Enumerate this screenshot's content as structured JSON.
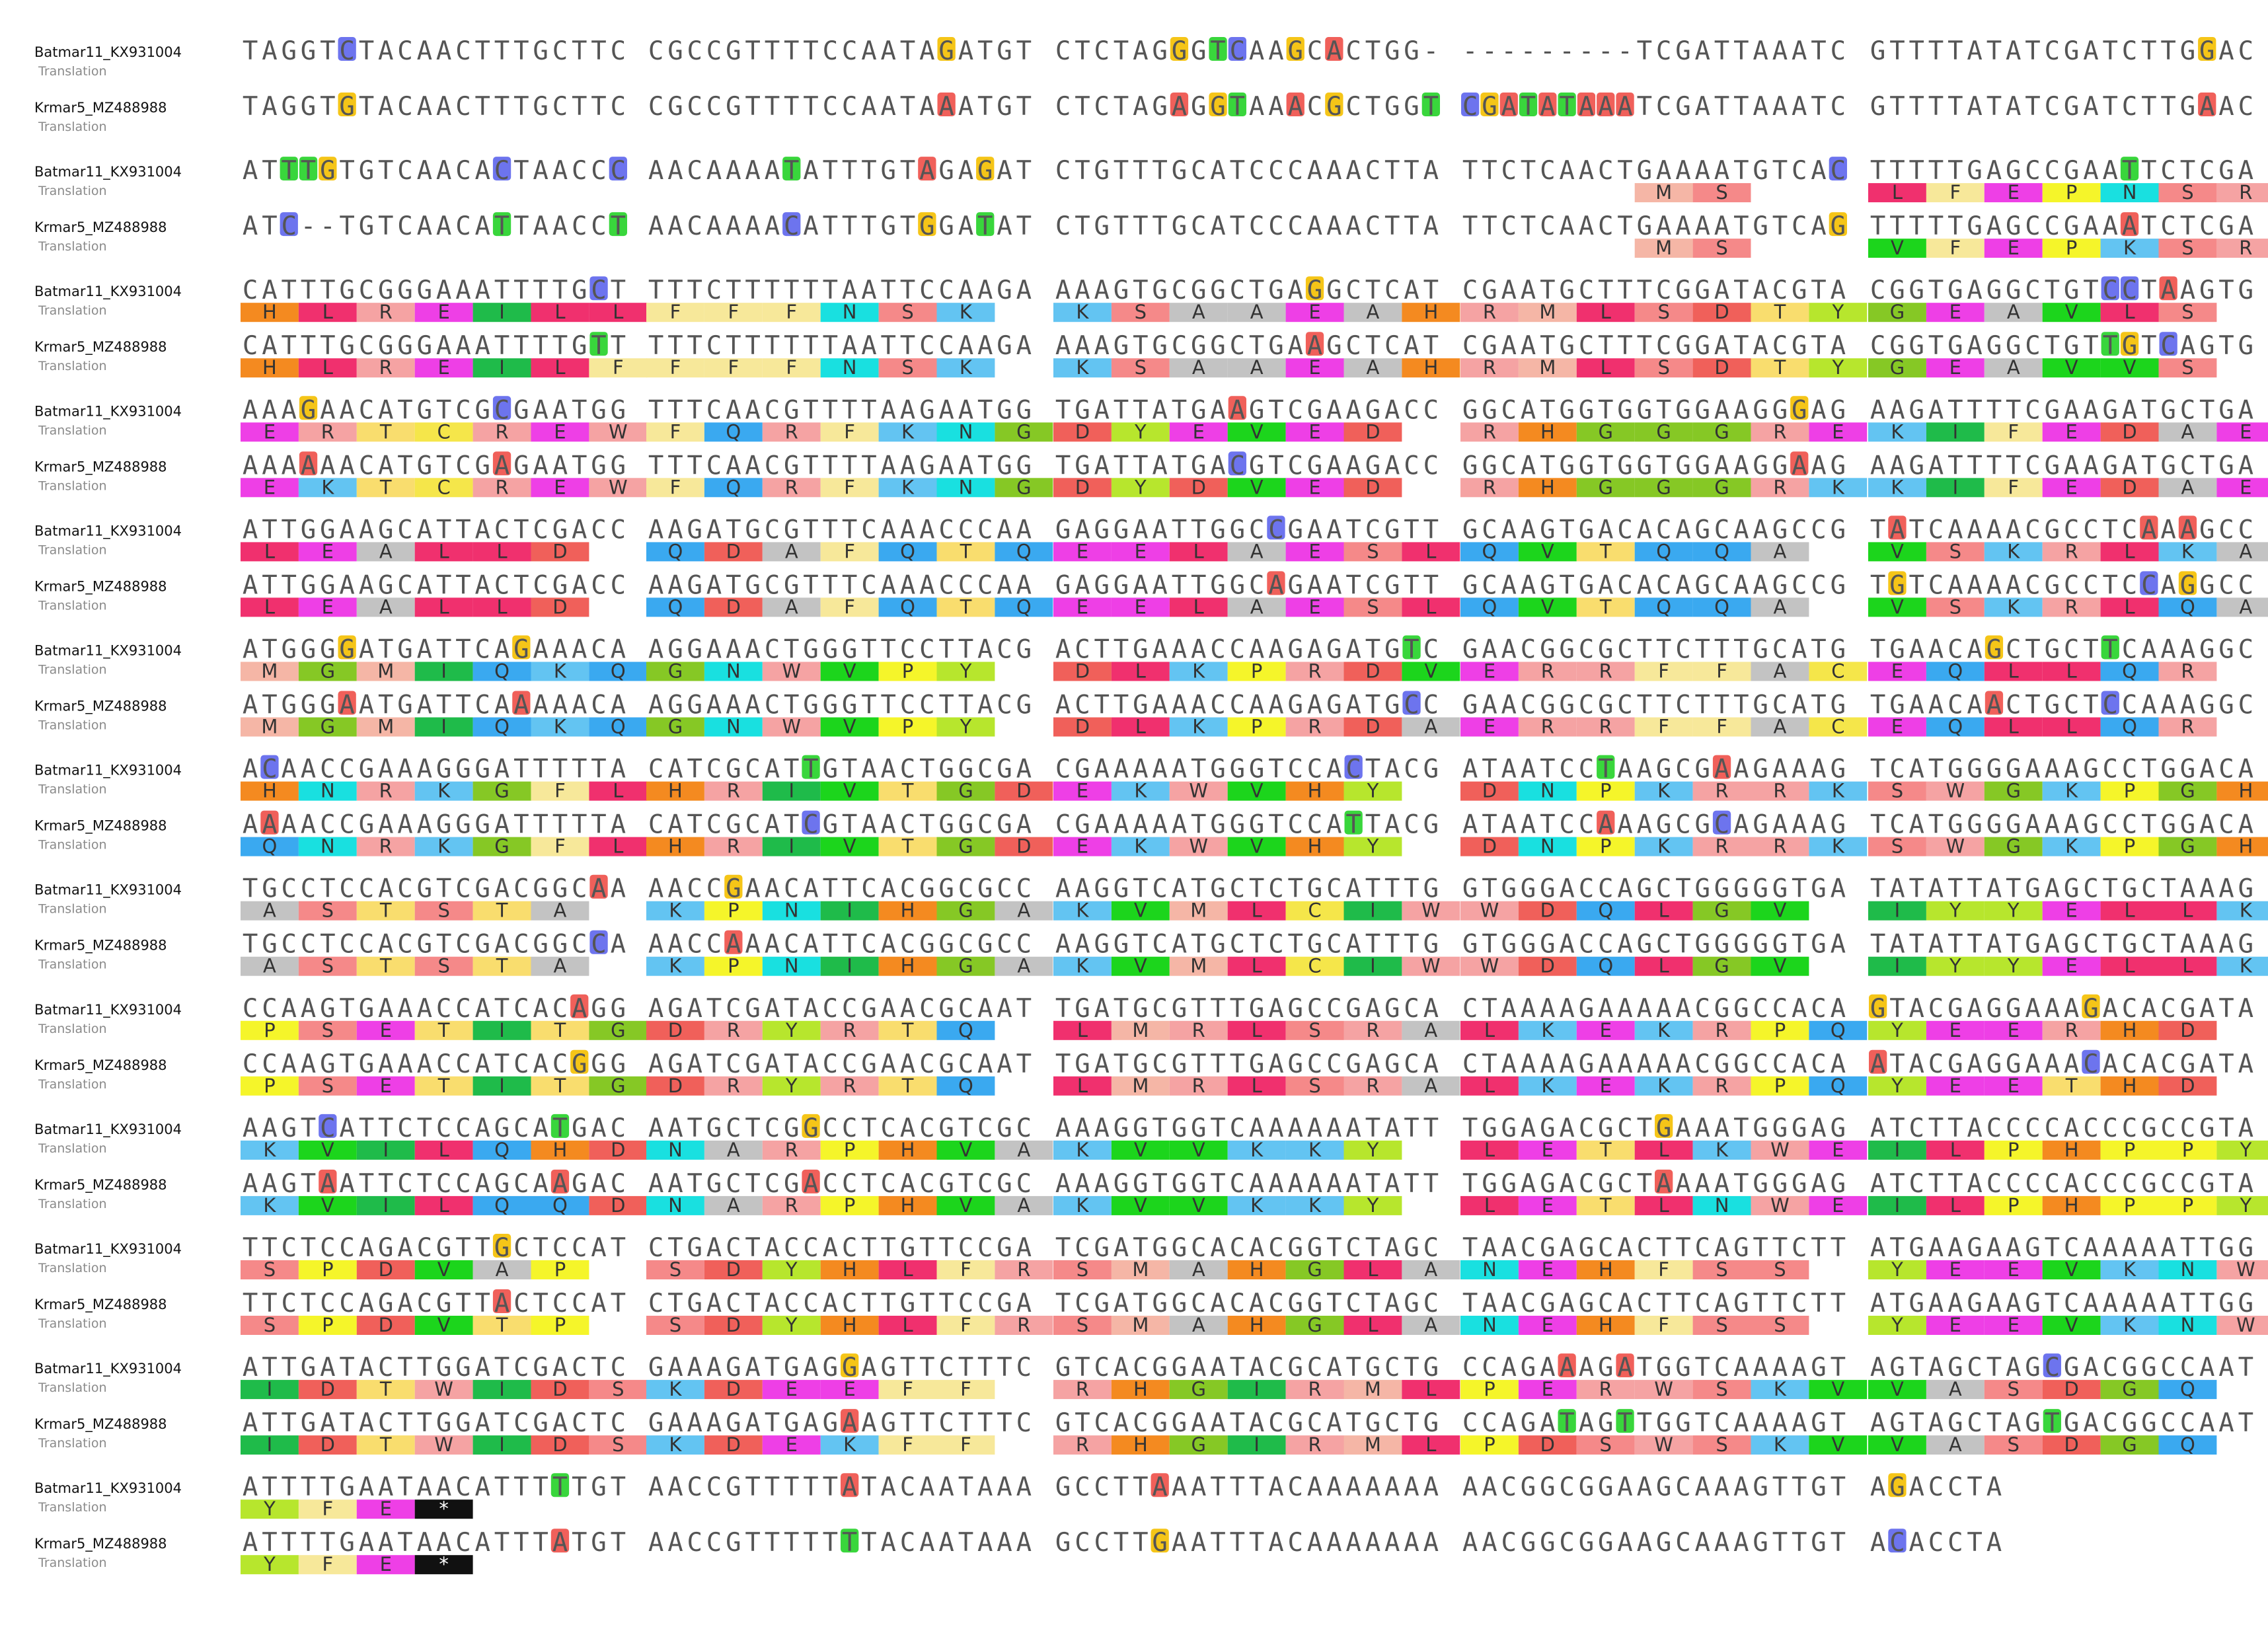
{
  "sequence_labels": {
    "batmar11": "Batmar11_KX931004",
    "krmar5": "Krmar5_MZ488988",
    "translation": "Translation"
  },
  "alignment_blocks": [
    {
      "top": {
        "nt": [
          "TAGGTCTACAACTTTGCTTC",
          "CGCCGTTTTCCAATAGATGT",
          "CTCTAGGGTCAAGCACTGG-",
          "---------TCGATTAAATC",
          "GTTTTATATCGATCTTGGAC"
        ],
        "aa": [
          "",
          "",
          "",
          "",
          ""
        ]
      },
      "bottom": {
        "nt": [
          "TAGGTGTACAACTTTGCTTC",
          "CGCCGTTTTCCAATAAATGT",
          "CTCTAGAGGTAAACGCTGGT",
          "CGATATAAATCGATTAAATC",
          "GTTTTATATCGATCTTGAAC"
        ],
        "aa": [
          "",
          "",
          "",
          "",
          ""
        ]
      }
    },
    {
      "top": {
        "nt": [
          "ATTTGTGTCAACACTAACCC",
          "AACAAAATATTTGTAGAGAT",
          "CTGTTTGCATCCCAAACTTA",
          "TTCTCAACTGAAAATGTCAC",
          "TTTTTGAGCCGAATTCTCGA"
        ],
        "aa": [
          "",
          "",
          "",
          "          M  S  ",
          "L  F  E  P  N  S  R "
        ]
      },
      "bottom": {
        "nt": [
          "ATC--TGTCAACATTAACCT",
          "AACAAAACATTTGTGGATAT",
          "CTGTTTGCATCCCAAACTTA",
          "TTCTCAACTGAAAATGTCAG",
          "TTTTTGAGCCGAAATCTCGA"
        ],
        "aa": [
          "",
          "",
          "",
          "          M  S  ",
          "V  F  E  P  K  S  R "
        ]
      }
    },
    {
      "top": {
        "nt": [
          "CATTTGCGGGAAATTTTGCT",
          "TTTCTTTTTTAATTCCAAGA",
          "AAAGTGCGGCTGAGGCTCAT",
          "CGAATGCTTTCGGATACGTA",
          "CGGTGAGGCTGTCCTAAGTG"
        ],
        "aa": [
          "H  L  R  E  I  L  L ",
          "  F  F  F  N  S  K  ",
          " K  S  A  A  E  A  H",
          "R  M  L  S  D  T  Y ",
          "  G  E  A  V  L  S  "
        ]
      },
      "bottom": {
        "nt": [
          "CATTTGCGGGAAATTTTGTT",
          "TTTCTTTTTTAATTCCAAGA",
          "AAAGTGCGGCTGAAGCTCAT",
          "CGAATGCTTTCGGATACGTA",
          "CGGTGAGGCTGTTGTCAGTG"
        ],
        "aa": [
          "H  L  R  E  I  L  F ",
          "  F  F  F  N  S  K  ",
          " K  S  A  A  E  A  H",
          "R  M  L  S  D  T  Y ",
          "  G  E  A  V  V  S  "
        ]
      }
    },
    {
      "top": {
        "nt": [
          "AAAGAACATGTCGCGAATGG",
          "TTTCAACGTTTTAAGAATGG",
          "TGATTATGAAGTCGAAGACC",
          "GGCATGGTGGTGGAAGGGAG",
          "AAGATTTTCGAAGATGCTGA"
        ],
        "aa": [
          "E  R  T  C  R  E  W ",
          "  F  Q  R  F  K  N  G",
          " D  Y  E  V  E  D  ",
          "R  H  G  G  G  R  E ",
          "  K  I  F  E  D  A  E"
        ]
      },
      "bottom": {
        "nt": [
          "AAAAAACATGTCGAGAATGG",
          "TTTCAACGTTTTAAGAATGG",
          "TGATTATGACGTCGAAGACC",
          "GGCATGGTGGTGGAAGGAAG",
          "AAGATTTTCGAAGATGCTGA"
        ],
        "aa": [
          "E  K  T  C  R  E  W ",
          "  F  Q  R  F  K  N  G",
          " D  Y  D  V  E  D  ",
          "R  H  G  G  G  R  K ",
          "  K  I  F  E  D  A  E"
        ]
      }
    },
    {
      "top": {
        "nt": [
          "ATTGGAAGCATTACTCGACC",
          "AAGATGCGTTTCAAACCCAA",
          "GAGGAATTGGCCGAATCGTT",
          "GCAAGTGACACAGCAAGCCG",
          "TATCAAAACGCCTCAAAGCC"
        ],
        "aa": [
          "  L  E  A  L  L  D  ",
          "Q  D  A  F  Q  T  Q ",
          "  E  E  L  A  E  S  L",
          "  Q  V  T  Q  Q  A  ",
          "V  S  K  R  L  K  A "
        ]
      },
      "bottom": {
        "nt": [
          "ATTGGAAGCATTACTCGACC",
          "AAGATGCGTTTCAAACCCAA",
          "GAGGAATTGGCAGAATCGTT",
          "GCAAGTGACACAGCAAGCCG",
          "TGTCAAAACGCCTCCAGGCC"
        ],
        "aa": [
          "  L  E  A  L  L  D  ",
          "Q  D  A  F  Q  T  Q ",
          "  E  E  L  A  E  S  L",
          "  Q  V  T  Q  Q  A  ",
          "V  S  K  R  L  Q  A "
        ]
      }
    },
    {
      "top": {
        "nt": [
          "ATGGGGATGATTCAGAAACA",
          "AGGAAACTGGGTTCCTTACG",
          "ACTTGAAACCAAGAGATGTC",
          "GAACGGCGCTTCTTTGCATG",
          "TGAACAGCTGCTTCAAAGGC"
        ],
        "aa": [
          "M  G  M  I  Q  K  Q ",
          "  G  N  W  V  P  Y  ",
          "D  L  K  P  R  D  V ",
          "  E  R  R  F  F  A  C",
          "  E  Q  L  L  Q  R  "
        ]
      },
      "bottom": {
        "nt": [
          "ATGGGAATGATTCAAAAACA",
          "AGGAAACTGGGTTCCTTACG",
          "ACTTGAAACCAAGAGATGCC",
          "GAACGGCGCTTCTTTGCATG",
          "TGAACAACTGCTCCAAAGGC"
        ],
        "aa": [
          "M  G  M  I  Q  K  Q ",
          "  G  N  W  V  P  Y  ",
          "D  L  K  P  R  D  A ",
          "  E  R  R  F  F  A  C",
          "  E  Q  L  L  Q  R  "
        ]
      }
    },
    {
      "top": {
        "nt": [
          "ACAACCGAAAGGGATTTTTA",
          "CATCGCATTGTAACTGGCGA",
          "CGAAAAATGGGTCCACTACG",
          "ATAATCCTAAGCGAAGAAAG",
          "TCATGGGGAAAGCCTGGACA"
        ],
        "aa": [
          "H  N  R  K  G  F  L ",
          "H  R  I  V  T  G  D ",
          "  E  K  W  V  H  Y  ",
          "D  N  P  K  R  R  K ",
          "  S  W  G  K  P  G  H"
        ]
      },
      "bottom": {
        "nt": [
          "AAAACCGAAAGGGATTTTTA",
          "CATCGCATCGTAACTGGCGA",
          "CGAAAAATGGGTCCATTACG",
          "ATAATCCAAAGCGCAGAAAG",
          "TCATGGGGAAAGCCTGGACA"
        ],
        "aa": [
          "Q  N  R  K  G  F  L ",
          "H  R  I  V  T  G  D ",
          "  E  K  W  V  H  Y  ",
          "D  N  P  K  R  R  K ",
          "  S  W  G  K  P  G  H"
        ]
      }
    },
    {
      "top": {
        "nt": [
          "TGCCTCCACGTCGACGGCAA",
          "AACCGAACATTCACGGCGCC",
          "AAGGTCATGCTCTGCATTTG",
          "GTGGGACCAGCTGGGGGTGA",
          "TATATTATGAGCTGCTAAAG"
        ],
        "aa": [
          "  A  S  T  S  T  A  ",
          "K  P  N  I  H  G  A ",
          "  K  V  M  L  C  I  W",
          "  W  D  Q  L  G  V  ",
          "I  Y  Y  E  L  L  K "
        ]
      },
      "bottom": {
        "nt": [
          "TGCCTCCACGTCGACGGCCA",
          "AACCAAACATTCACGGCGCC",
          "AAGGTCATGCTCTGCATTTG",
          "GTGGGACCAGCTGGGGGTGA",
          "TATATTATGAGCTGCTAAAG"
        ],
        "aa": [
          "  A  S  T  S  T  A  ",
          "K  P  N  I  H  G  A ",
          "  K  V  M  L  C  I  W",
          "  W  D  Q  L  G  V  ",
          "I  Y  Y  E  L  L  K "
        ]
      }
    },
    {
      "top": {
        "nt": [
          "CCAAGTGAAACCATCACAGG",
          "AGATCGATACCGAACGCAAT",
          "TGATGCGTTTGAGCCGAGCA",
          "CTAAAAGAAAAACGGCCACA",
          "GTACGAGGAAAGACACGATA"
        ],
        "aa": [
          "P  S  E  T  I  T  G ",
          "  D  R  Y  R  T  Q  ",
          "L  M  R  L  S  R  A ",
          "  L  K  E  K  R  P  Q",
          "  Y  E  E  R  H  D  "
        ]
      },
      "bottom": {
        "nt": [
          "CCAAGTGAAACCATCACGGG",
          "AGATCGATACCGAACGCAAT",
          "TGATGCGTTTGAGCCGAGCA",
          "CTAAAAGAAAAACGGCCACA",
          "ATACGAGGAAACACACGATA"
        ],
        "aa": [
          "P  S  E  T  I  T  G ",
          "  D  R  Y  R  T  Q  ",
          "L  M  R  L  S  R  A ",
          "  L  K  E  K  R  P  Q",
          "  Y  E  E  T  H  D  "
        ]
      }
    },
    {
      "top": {
        "nt": [
          "AAGTCATTCTCCAGCATGAC",
          "AATGCTCGGCCTCACGTCGC",
          "AAAGGTGGTCAAAAAATATT",
          "TGGAGACGCTGAAATGGGAG",
          "ATCTTACCCCACCCGCCGTA"
        ],
        "aa": [
          "K  V  I  L  Q  H  D ",
          "  N  A  R  P  H  V  A",
          "  K  V  V  K  K  Y  ",
          "L  E  T  L  K  W  E ",
          "  I  L  P  H  P  P  Y"
        ]
      },
      "bottom": {
        "nt": [
          "AAGTAATTCTCCAGCAAGAC",
          "AATGCTCGACCTCACGTCGC",
          "AAAGGTGGTCAAAAAATATT",
          "TGGAGACGCTAAAATGGGAG",
          "ATCTTACCCCACCCGCCGTA"
        ],
        "aa": [
          "K  V  I  L  Q  Q  D ",
          "  N  A  R  P  H  V  A",
          "  K  V  V  K  K  Y  ",
          "L  E  T  L  N  W  E ",
          "  I  L  P  H  P  P  Y"
        ]
      }
    },
    {
      "top": {
        "nt": [
          "TTCTCCAGACGTTGCTCCAT",
          "CTGACTACCACTTGTTCCGA",
          "TCGATGGCACACGGTCTAGC",
          "TAACGAGCACTTCAGTTCTT",
          "ATGAAGAAGTCAAAAATTGG"
        ],
        "aa": [
          "  S  P  D  V  A  P  ",
          "S  D  Y  H  L  F  R ",
          "  S  M  A  H  G  L  A",
          "  N  E  H  F  S  S  ",
          "Y  E  E  V  K  N  W "
        ]
      },
      "bottom": {
        "nt": [
          "TTCTCCAGACGTTACTCCAT",
          "CTGACTACCACTTGTTCCGA",
          "TCGATGGCACACGGTCTAGC",
          "TAACGAGCACTTCAGTTCTT",
          "ATGAAGAAGTCAAAAATTGG"
        ],
        "aa": [
          "  S  P  D  V  T  P  ",
          "S  D  Y  H  L  F  R ",
          "  S  M  A  H  G  L  A",
          "  N  E  H  F  S  S  ",
          "Y  E  E  V  K  N  W "
        ]
      }
    },
    {
      "top": {
        "nt": [
          "ATTGATACTTGGATCGACTC",
          "GAAAGATGAGGAGTTCTTTC",
          "GTCACGGAATACGCATGCTG",
          "CCAGAAAGATGGTCAAAAGT",
          "AGTAGCTAGCGACGGCCAAT"
        ],
        "aa": [
          "  I  D  T  W  I  D  S",
          "  K  D  E  E  F  F  ",
          "R  H  G  I  R  M  L ",
          "  P  E  R  W  S  K  V",
          "  V  A  S  D  G  Q  "
        ]
      },
      "bottom": {
        "nt": [
          "ATTGATACTTGGATCGACTC",
          "GAAAGATGAGAAGTTCTTTC",
          "GTCACGGAATACGCATGCTG",
          "CCAGATAGTTGGTCAAAAGT",
          "AGTAGCTAGTGACGGCCAAT"
        ],
        "aa": [
          "  I  D  T  W  I  D  S",
          "  K  D  E  K  F  F  ",
          "R  H  G  I  R  M  L ",
          "  P  D  S  W  S  K  V",
          "  V  A  S  D  G  Q  "
        ]
      }
    },
    {
      "top": {
        "nt": [
          "ATTTTGAATAACATTTTTGT",
          "AACCGTTTTTATACAATAAA",
          "GCCTTAAATTTACAAAAAAA",
          "AACGGCGGAAGCAAAGTTGT",
          "AGACCTA"
        ],
        "aa": [
          "Y  F  E  *  ",
          "",
          "",
          "",
          ""
        ]
      },
      "bottom": {
        "nt": [
          "ATTTTGAATAACATTTATGT",
          "AACCGTTTTTTTACAATAAA",
          "GCCTTGAATTTACAAAAAAA",
          "AACGGCGGAAGCAAAGTTGT",
          "ACACCTA"
        ],
        "aa": [
          "Y  F  E  *  ",
          "",
          "",
          "",
          ""
        ]
      }
    }
  ],
  "colors": {
    "nucleotide_highlight": {
      "A": "#f0605a",
      "C": "#6d74ee",
      "G": "#f5c518",
      "T": "#39d63c"
    },
    "amino_acid": {
      "A": "#c3c3c3",
      "C": "#f5e64a",
      "D": "#f0605a",
      "E": "#ee3fe6",
      "F": "#f7e89a",
      "G": "#86c825",
      "H": "#f48a20",
      "I": "#1fbb4a",
      "K": "#63c4f2",
      "L": "#f0306e",
      "M": "#f5b6a6",
      "N": "#19e0e0",
      "P": "#f5f52a",
      "Q": "#3aa9f0",
      "R": "#f5a3a3",
      "S": "#f58989",
      "T": "#f9dd6e",
      "V": "#1cd51c",
      "W": "#f5a3a3",
      "Y": "#b7e62d",
      "*": "#111111"
    }
  }
}
